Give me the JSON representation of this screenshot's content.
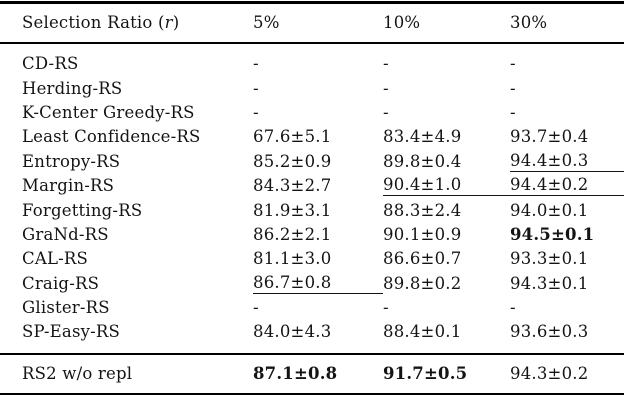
{
  "table": {
    "header": {
      "label_prefix": "Selection Ratio (",
      "label_var": "r",
      "label_suffix": ")",
      "columns": [
        "5%",
        "10%",
        "30%"
      ]
    },
    "rows": [
      {
        "method": "CD-RS",
        "cells": [
          {
            "text": "-"
          },
          {
            "text": "-"
          },
          {
            "text": "-"
          }
        ]
      },
      {
        "method": "Herding-RS",
        "cells": [
          {
            "text": "-"
          },
          {
            "text": "-"
          },
          {
            "text": "-"
          }
        ]
      },
      {
        "method": "K-Center Greedy-RS",
        "cells": [
          {
            "text": "-"
          },
          {
            "text": "-"
          },
          {
            "text": "-"
          }
        ]
      },
      {
        "method": "Least Confidence-RS",
        "cells": [
          {
            "text": "67.6±5.1"
          },
          {
            "text": "83.4±4.9"
          },
          {
            "text": "93.7±0.4"
          }
        ]
      },
      {
        "method": "Entropy-RS",
        "cells": [
          {
            "text": "85.2±0.9"
          },
          {
            "text": "89.8±0.4"
          },
          {
            "text": "94.4±0.3",
            "underline": true
          }
        ]
      },
      {
        "method": "Margin-RS",
        "cells": [
          {
            "text": "84.3±2.7"
          },
          {
            "text": "90.4±1.0",
            "underline": true
          },
          {
            "text": "94.4±0.2",
            "underline": true
          }
        ]
      },
      {
        "method": "Forgetting-RS",
        "cells": [
          {
            "text": "81.9±3.1"
          },
          {
            "text": "88.3±2.4"
          },
          {
            "text": "94.0±0.1"
          }
        ]
      },
      {
        "method": "GraNd-RS",
        "cells": [
          {
            "text": "86.2±2.1"
          },
          {
            "text": "90.1±0.9"
          },
          {
            "text": "94.5±0.1",
            "bold": true
          }
        ]
      },
      {
        "method": "CAL-RS",
        "cells": [
          {
            "text": "81.1±3.0"
          },
          {
            "text": "86.6±0.7"
          },
          {
            "text": "93.3±0.1"
          }
        ]
      },
      {
        "method": "Craig-RS",
        "cells": [
          {
            "text": "86.7±0.8",
            "underline": true
          },
          {
            "text": "89.8±0.2"
          },
          {
            "text": "94.3±0.1"
          }
        ]
      },
      {
        "method": "Glister-RS",
        "cells": [
          {
            "text": "-"
          },
          {
            "text": "-"
          },
          {
            "text": "-"
          }
        ]
      },
      {
        "method": "SP-Easy-RS",
        "cells": [
          {
            "text": "84.0±4.3"
          },
          {
            "text": "88.4±0.1"
          },
          {
            "text": "93.6±0.3"
          }
        ]
      }
    ],
    "footer": {
      "method": "RS2 w/o repl",
      "cells": [
        {
          "text": "87.1±0.8",
          "bold": true
        },
        {
          "text": "91.7±0.5",
          "bold": true
        },
        {
          "text": "94.3±0.2"
        }
      ]
    }
  }
}
